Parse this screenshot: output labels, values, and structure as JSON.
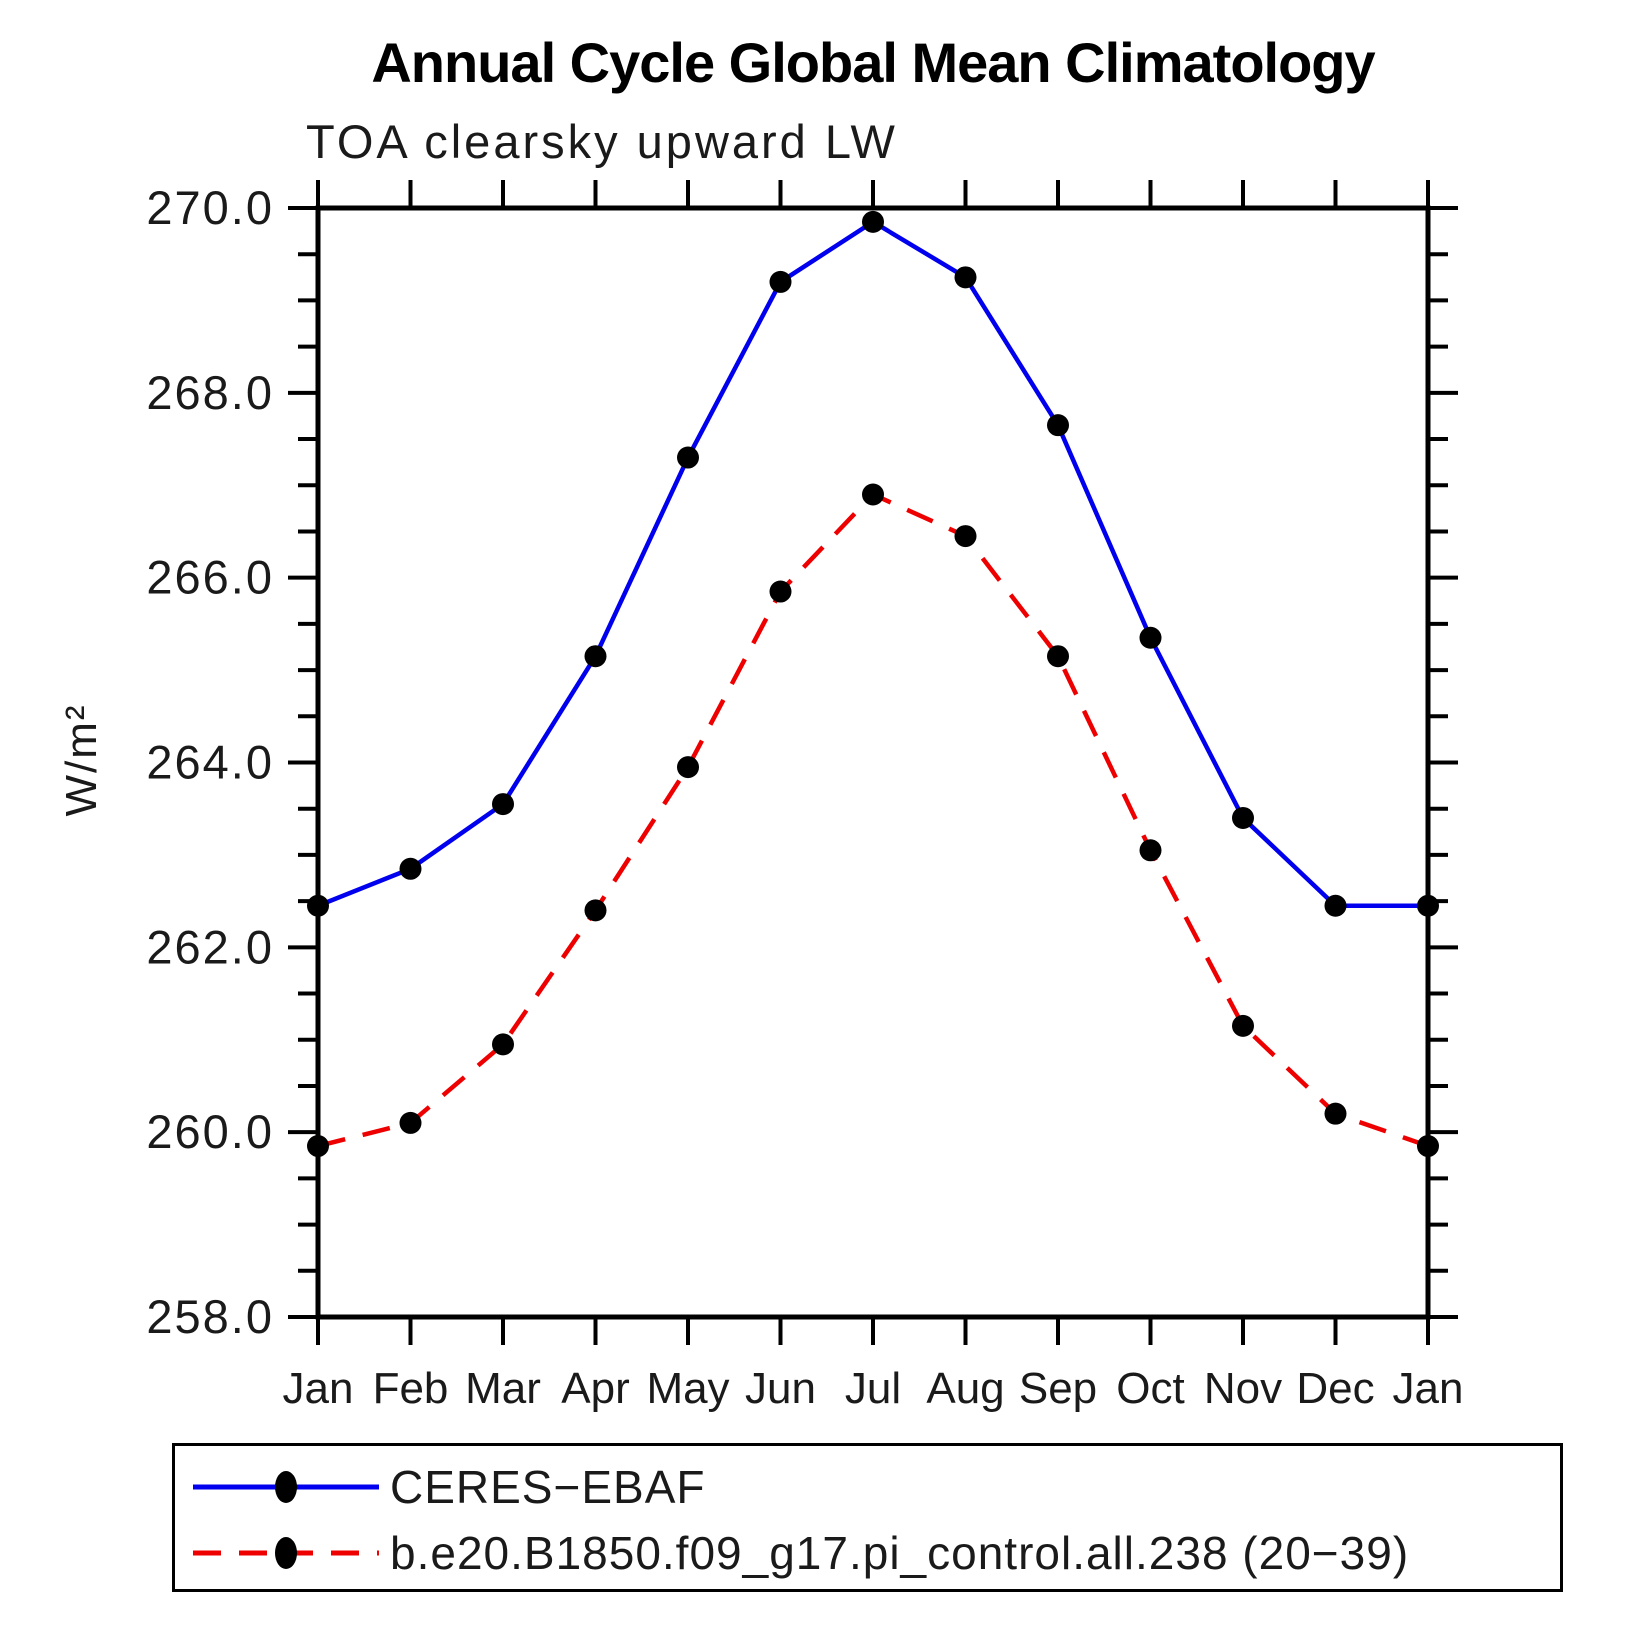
{
  "title": "Annual Cycle Global Mean Climatology",
  "chart_data": {
    "type": "line",
    "title": "Annual Cycle Global Mean Climatology",
    "subtitle": "TOA clearsky upward LW",
    "ylabel": "W/m²",
    "xlabel": "",
    "categories": [
      "Jan",
      "Feb",
      "Mar",
      "Apr",
      "May",
      "Jun",
      "Jul",
      "Aug",
      "Sep",
      "Oct",
      "Nov",
      "Dec",
      "Jan"
    ],
    "ylim": [
      258.0,
      270.0
    ],
    "ytick_major": 2.0,
    "ytick_minor": 0.5,
    "ytick_labels": [
      "258.0",
      "260.0",
      "262.0",
      "264.0",
      "266.0",
      "268.0",
      "270.0"
    ],
    "grid": false,
    "legend_position": "bottom",
    "axis_color": "#000000",
    "series": [
      {
        "name": "CERES−EBAF",
        "color": "#0000ee",
        "style": "solid",
        "marker": "filled-circle",
        "marker_color": "#000000",
        "values": [
          262.45,
          262.85,
          263.55,
          265.15,
          267.3,
          269.2,
          269.85,
          269.25,
          267.65,
          265.35,
          263.4,
          262.45,
          262.45
        ]
      },
      {
        "name": "b.e20.B1850.f09_g17.pi_control.all.238 (20−39)",
        "color": "#ee0000",
        "style": "dashed",
        "marker": "filled-circle",
        "marker_color": "#000000",
        "values": [
          259.85,
          260.1,
          260.95,
          262.4,
          263.95,
          265.85,
          266.9,
          266.45,
          265.15,
          263.05,
          261.15,
          260.2,
          259.85
        ]
      }
    ]
  }
}
